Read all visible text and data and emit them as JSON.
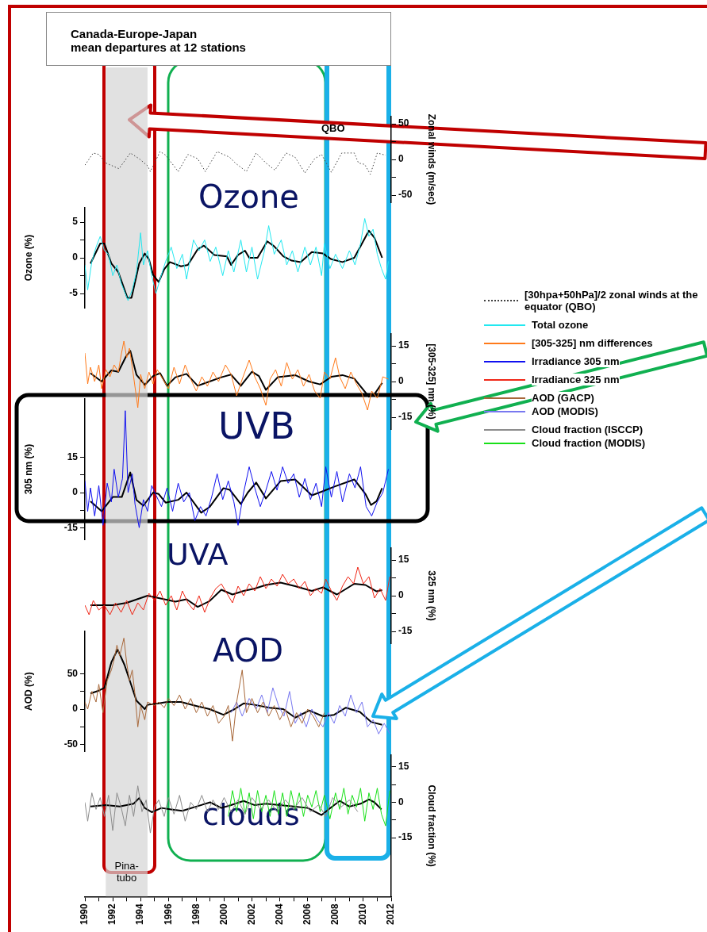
{
  "chart_data": [
    {
      "type": "line",
      "title": "Canada-Europe-Japan\nmean departures at 12 stations",
      "y2label": "Zonal winds (m/sec)",
      "xlim": [
        1990,
        2012
      ],
      "y2lim": [
        -60,
        60
      ],
      "y2ticks": [
        -50,
        {
          "value": -25,
          "label": null
        },
        0,
        {
          "value": 25,
          "label": null
        },
        50
      ],
      "tick_labels": "y",
      "legend": "right",
      "line_style": "dotted",
      "annotations": [
        "QBO",
        "Ozone"
      ],
      "series": [
        {
          "name": "[30hpa+50hPa]/2 zonal winds at the equator (QBO)",
          "color": "#404040",
          "axis": "y2",
          "x": [
            1990,
            1990.6,
            1991,
            1991.5,
            1992.45,
            1993.26,
            1993.9,
            1994.5,
            1994.7,
            1995.4,
            1995.8,
            1996.7,
            1997.4,
            1998.1,
            1998.65,
            1999.5,
            2000.4,
            2000.8,
            2001.6,
            2002.3,
            2003,
            2003.65,
            2004.45,
            2005.1,
            2005.8,
            2006.5,
            2007,
            2007.7,
            2008.45,
            2009.35,
            2009.65,
            2010.1,
            2010.5,
            2011,
            2011.6
          ],
          "values": [
            -8,
            9,
            7,
            -5,
            -13,
            9,
            1,
            -9,
            -17,
            11,
            6,
            -17,
            7,
            1,
            -17,
            11,
            3,
            -5,
            -17,
            9,
            -5,
            -15,
            9,
            3,
            -19,
            1,
            7,
            -18,
            9,
            9,
            -5,
            -7,
            -21,
            9,
            6
          ]
        }
      ]
    },
    {
      "type": "line",
      "ylabel": "Ozone (%)",
      "xlim": [
        1990,
        2012
      ],
      "ylim": [
        -7,
        7
      ],
      "yticks": [
        -5,
        {
          "value": -2.5,
          "label": null
        },
        0,
        {
          "value": 2.5,
          "label": null
        },
        5
      ],
      "tick_labels": "y",
      "legend": "right",
      "series": [
        {
          "name": "Total ozone",
          "color": "#22e8f0",
          "x": [
            1990,
            1990.2,
            1990.5,
            1990.8,
            1991.1,
            1991.4,
            1991.7,
            1992,
            1992.3,
            1992.6,
            1992.9,
            1993.1,
            1993.4,
            1993.7,
            1994,
            1994.2,
            1994.5,
            1994.8,
            1995.1,
            1995.4,
            1995.8,
            1996.2,
            1996.6,
            1997,
            1997.3,
            1997.8,
            1998.2,
            1998.6,
            1999,
            1999.4,
            1999.9,
            2000.3,
            2000.7,
            2001.2,
            2001.6,
            2002,
            2002.4,
            2002.9,
            2003.2,
            2003.6,
            2004.1,
            2004.5,
            2004.9,
            2005.3,
            2005.8,
            2006.2,
            2006.6,
            2007,
            2007.2,
            2007.6,
            2008,
            2008.5,
            2009,
            2009.4,
            2009.8,
            2010.1,
            2010.4,
            2010.7,
            2011,
            2011.3,
            2011.6,
            2011.8
          ],
          "values": [
            -1,
            -4.5,
            -0.5,
            1.5,
            3,
            1,
            0.5,
            -2.5,
            -1,
            -3.5,
            -5,
            -6,
            -4.5,
            -2,
            3.5,
            -1,
            1,
            -2.5,
            -5,
            -3,
            -0.5,
            1.5,
            -1.5,
            0.5,
            -3,
            2.5,
            1,
            2.5,
            -0.5,
            1.5,
            -2.5,
            1,
            -2,
            2.5,
            -2,
            1.5,
            -3,
            1,
            4.5,
            0.5,
            2.5,
            -1,
            1,
            -2,
            1.5,
            -1,
            1.5,
            -2.5,
            2,
            -1.5,
            0.5,
            -1.5,
            1,
            -1,
            2,
            5.5,
            3,
            4,
            0.5,
            -1.5,
            -3,
            -0.5
          ]
        },
        {
          "color": "#000000",
          "x": [
            1990.4,
            1991.1,
            1991.4,
            1991.9,
            1992.4,
            1993.05,
            1993.35,
            1993.9,
            1994.3,
            1994.6,
            1994.9,
            1995.3,
            1995.7,
            1996.1,
            1996.9,
            1997.4,
            1998.1,
            1998.55,
            1999.3,
            2000.2,
            2000.5,
            2001,
            2001.5,
            2001.8,
            2002.4,
            2003.1,
            2003.6,
            2004.25,
            2004.85,
            2005.5,
            2006.3,
            2007.1,
            2007.7,
            2008.5,
            2009.35,
            2009.85,
            2010.4,
            2010.8,
            2011.35
          ],
          "values": [
            -0.8,
            2,
            2,
            -0.8,
            -2,
            -5.6,
            -5.6,
            -0.8,
            0.6,
            -0.2,
            -2.4,
            -3.4,
            -1.6,
            -0.6,
            -1.2,
            -1,
            1.2,
            1.7,
            0.4,
            0.2,
            -1,
            0.4,
            1,
            0,
            0,
            2.3,
            1.6,
            0.2,
            -0.4,
            -0.6,
            0.8,
            0.6,
            -0.2,
            -0.6,
            0,
            1.8,
            3.8,
            2.8,
            0
          ]
        }
      ]
    },
    {
      "type": "line",
      "y2label": "[305-325] nm (%)",
      "xlim": [
        1990,
        2012
      ],
      "y2lim": [
        -20,
        20
      ],
      "y2ticks": [
        -15,
        {
          "value": -7.5,
          "label": null
        },
        0,
        {
          "value": 7.5,
          "label": null
        },
        15
      ],
      "tick_labels": "y",
      "legend": "right",
      "annotations": [
        "UVB"
      ],
      "series": [
        {
          "name": "[305-325] nm differences",
          "color": "#ff7a1a",
          "axis": "y2",
          "x": [
            1990,
            1990.2,
            1990.4,
            1990.7,
            1991,
            1991.2,
            1991.5,
            1991.8,
            1992.1,
            1992.4,
            1992.6,
            1992.8,
            1993,
            1993.2,
            1993.5,
            1993.8,
            1994,
            1994.3,
            1994.6,
            1994.9,
            1995.2,
            1995.6,
            1996,
            1996.4,
            1996.8,
            1997.2,
            1997.6,
            1998,
            1998.4,
            1998.8,
            1999.2,
            1999.6,
            2000.1,
            2000.5,
            2000.9,
            2001.3,
            2001.8,
            2002.2,
            2002.6,
            2003,
            2003.3,
            2003.7,
            2004.1,
            2004.5,
            2004.9,
            2005.3,
            2005.7,
            2006.1,
            2006.5,
            2006.9,
            2007.2,
            2007.6,
            2008,
            2008.3,
            2008.7,
            2009.1,
            2009.5,
            2009.9,
            2010.3,
            2010.6,
            2011,
            2011.4,
            2011.8
          ],
          "values": [
            12,
            -1,
            6,
            0,
            7,
            -3,
            5,
            2,
            7,
            4,
            11,
            17,
            10,
            14,
            2,
            -11,
            3,
            -3,
            4,
            -1,
            5,
            1,
            -3,
            6,
            -1,
            7,
            1,
            -4,
            2,
            -2,
            4,
            0,
            7,
            3,
            -6,
            1,
            9,
            2,
            -3,
            -10,
            1,
            5,
            -2,
            8,
            1,
            5,
            -2,
            3,
            -4,
            -7,
            4,
            1,
            10,
            2,
            -3,
            4,
            -1,
            -5,
            -12,
            -4,
            -7,
            2,
            1
          ]
        },
        {
          "color": "#000000",
          "axis": "y2",
          "x": [
            1990.4,
            1991.2,
            1991.9,
            1992.4,
            1992.95,
            1993.26,
            1993.7,
            1994.3,
            1994.9,
            1995.4,
            1995.9,
            1996.5,
            1997.3,
            1998.1,
            1998.95,
            1999.8,
            2000.5,
            2001.2,
            2002,
            2002.5,
            2003,
            2003.85,
            2005.1,
            2006.1,
            2006.9,
            2007.7,
            2008.5,
            2009.35,
            2010.4,
            2010.8,
            2011.35
          ],
          "values": [
            3.5,
            0,
            4.7,
            4.1,
            10.5,
            12.9,
            2.9,
            -1.4,
            2.3,
            3.5,
            -1.8,
            1.8,
            3.2,
            -1.8,
            0,
            1.8,
            2.9,
            -1.8,
            4.1,
            2.3,
            -3.5,
            1.8,
            2.7,
            0,
            -1.2,
            2,
            2.7,
            1.2,
            -6.4,
            -5.3,
            -0.6
          ]
        }
      ]
    },
    {
      "type": "line",
      "ylabel": "305 nm (%)",
      "xlim": [
        1990,
        2012
      ],
      "ylim": [
        -20,
        40
      ],
      "yticks": [
        -15,
        {
          "value": -7.5,
          "label": null
        },
        0,
        {
          "value": 7.5,
          "label": null
        },
        15
      ],
      "tick_labels": "y",
      "legend": "right",
      "series": [
        {
          "name": "Irradiance 305 nm",
          "color": "#1010f0",
          "x": [
            1990,
            1990.2,
            1990.4,
            1990.7,
            1991,
            1991.3,
            1991.6,
            1991.9,
            1992.1,
            1992.4,
            1992.7,
            1992.9,
            1993.1,
            1993.4,
            1993.6,
            1993.9,
            1994.2,
            1994.5,
            1994.8,
            1995.1,
            1995.5,
            1995.9,
            1996.3,
            1996.7,
            1997.1,
            1997.5,
            1997.9,
            1998.3,
            1998.7,
            1999.1,
            1999.5,
            1999.9,
            2000.3,
            2000.7,
            2001,
            2001.4,
            2001.8,
            2002.2,
            2002.6,
            2003,
            2003.4,
            2003.8,
            2004.2,
            2004.6,
            2005,
            2005.4,
            2005.8,
            2006.2,
            2006.6,
            2007,
            2007.3,
            2007.7,
            2008.1,
            2008.5,
            2009,
            2009.4,
            2009.8,
            2010.2,
            2010.6,
            2011,
            2011.4,
            2011.8
          ],
          "values": [
            5,
            -8,
            2,
            -10,
            3,
            -14,
            4,
            -4,
            10,
            -2,
            6,
            35,
            0,
            8,
            -5,
            -15,
            -3,
            -8,
            3,
            -1,
            -6,
            2,
            -8,
            4,
            -4,
            0,
            -12,
            -6,
            -10,
            -2,
            8,
            -3,
            5,
            -4,
            -14,
            0,
            11,
            2,
            -6,
            1,
            9,
            1,
            11,
            4,
            8,
            -2,
            6,
            -3,
            4,
            -6,
            11,
            -2,
            9,
            -4,
            8,
            2,
            11,
            -6,
            -10,
            -4,
            0,
            10
          ]
        },
        {
          "color": "#000000",
          "x": [
            1990.4,
            1991.2,
            1992,
            1992.65,
            1993.26,
            1993.7,
            1994.2,
            1994.9,
            1995.3,
            1995.8,
            1996.7,
            1997.3,
            1998.35,
            1998.95,
            1999.95,
            2000.4,
            2001.2,
            2001.7,
            2002.3,
            2003,
            2004.05,
            2005.1,
            2006.3,
            2007.1,
            2007.9,
            2009.35,
            2010.15,
            2010.55,
            2010.95,
            2011.35
          ],
          "values": [
            -3.7,
            -8,
            -1.9,
            -1.9,
            8.6,
            -3.1,
            -5.6,
            0,
            -0.6,
            -4.3,
            -3.1,
            0,
            -8.6,
            -6.2,
            1.9,
            1.2,
            -4.9,
            0,
            4.3,
            -2.5,
            4.9,
            5.6,
            -1.2,
            0.6,
            2.5,
            5.6,
            -0.6,
            -5.3,
            -3.7,
            1.9
          ]
        }
      ]
    },
    {
      "type": "line",
      "y2label": "325 nm (%)",
      "xlim": [
        1990,
        2012
      ],
      "y2lim": [
        -20,
        20
      ],
      "y2ticks": [
        -15,
        {
          "value": -7.5,
          "label": null
        },
        0,
        {
          "value": 7.5,
          "label": null
        },
        15
      ],
      "tick_labels": "y",
      "legend": "right",
      "annotations": [
        "UVA"
      ],
      "series": [
        {
          "name": "Irradiance 325 nm",
          "color": "#f02818",
          "axis": "y2",
          "x": [
            1990,
            1990.3,
            1990.6,
            1991,
            1991.4,
            1991.8,
            1992.2,
            1992.6,
            1993,
            1993.4,
            1993.8,
            1994.2,
            1994.6,
            1995,
            1995.4,
            1995.8,
            1996.2,
            1996.6,
            1997,
            1997.4,
            1997.8,
            1998.2,
            1998.6,
            1999,
            1999.4,
            1999.8,
            2000.2,
            2000.6,
            2001,
            2001.4,
            2001.8,
            2002.2,
            2002.6,
            2003,
            2003.4,
            2003.8,
            2004.2,
            2004.6,
            2005,
            2005.4,
            2005.8,
            2006.2,
            2006.6,
            2007,
            2007.3,
            2007.7,
            2008.1,
            2008.5,
            2008.9,
            2009.3,
            2009.6,
            2010,
            2010.4,
            2010.8,
            2011.2,
            2011.6,
            2011.9
          ],
          "values": [
            -4,
            -8,
            -2,
            -6,
            -4,
            -8,
            -3,
            -7,
            -2,
            -8,
            -3,
            -6,
            1,
            -2,
            2,
            -4,
            0,
            -6,
            2,
            -3,
            -6,
            0,
            -7,
            -1,
            3,
            5,
            1,
            -3,
            4,
            0,
            5,
            2,
            8,
            3,
            7,
            4,
            9,
            5,
            7,
            3,
            6,
            0,
            3,
            1,
            7,
            2,
            -2,
            4,
            8,
            5,
            12,
            5,
            8,
            -1,
            3,
            -2,
            8
          ]
        },
        {
          "color": "#000000",
          "axis": "y2",
          "x": [
            1990.4,
            1992,
            1993,
            1994.5,
            1995.3,
            1996.5,
            1997.3,
            1998.1,
            1998.95,
            1999.8,
            2000.6,
            2001.4,
            2002.2,
            2003,
            2004.05,
            2005.1,
            2006.3,
            2007.1,
            2008.1,
            2009.35,
            2010.15,
            2010.95,
            2011.35
          ],
          "values": [
            -4,
            -4,
            -3,
            0,
            -1,
            -2.5,
            -1.5,
            -4.7,
            -2.3,
            2.5,
            0.5,
            2,
            3,
            4.5,
            5.5,
            4,
            2,
            3.5,
            0.5,
            5,
            4.5,
            1.8,
            2.3
          ]
        }
      ]
    },
    {
      "type": "line",
      "ylabel": "AOD (%)",
      "xlim": [
        1990,
        2012
      ],
      "ylim": [
        -60,
        110
      ],
      "yticks": [
        -50,
        {
          "value": -25,
          "label": null
        },
        0,
        {
          "value": 25,
          "label": null
        },
        50
      ],
      "tick_labels": "y",
      "legend": "right",
      "annotations": [
        "AOD"
      ],
      "series": [
        {
          "name": "AOD (GACP)",
          "color": "#a8683a",
          "x": [
            1990,
            1990.2,
            1990.5,
            1990.8,
            1991,
            1991.3,
            1991.6,
            1991.9,
            1992.1,
            1992.3,
            1992.5,
            1992.8,
            1993,
            1993.2,
            1993.4,
            1993.6,
            1993.8,
            1994,
            1994.3,
            1994.5,
            1995,
            1995.3,
            1995.7,
            1996,
            1996.4,
            1996.8,
            1997.2,
            1997.6,
            1998,
            1998.4,
            1998.8,
            1999.2,
            1999.6,
            2000,
            2000.3,
            2000.6,
            2000.9,
            2001.3,
            2001.6,
            2002,
            2002.4,
            2002.8,
            2003.2,
            2003.6,
            2004,
            2004.4,
            2004.8,
            2005.2,
            2005.6,
            2006,
            2006.4,
            2006.8,
            2007.2
          ],
          "values": [
            10,
            0,
            25,
            10,
            35,
            -5,
            40,
            55,
            70,
            90,
            75,
            100,
            65,
            40,
            55,
            20,
            -25,
            5,
            -15,
            10,
            5,
            10,
            2,
            15,
            5,
            20,
            0,
            15,
            -5,
            10,
            -10,
            5,
            -20,
            -10,
            5,
            -45,
            10,
            55,
            -5,
            15,
            -5,
            10,
            -10,
            5,
            -15,
            0,
            -25,
            -5,
            -20,
            0,
            -10,
            -25,
            -5
          ]
        },
        {
          "name": "AOD (MODIS)",
          "color": "#7878f0",
          "x": [
            2000.5,
            2000.9,
            2001.3,
            2001.8,
            2002.3,
            2002.7,
            2003.1,
            2003.5,
            2003.9,
            2004.3,
            2004.7,
            2005.1,
            2005.5,
            2005.9,
            2006.3,
            2006.7,
            2007.1,
            2007.5,
            2007.9,
            2008.3,
            2008.7,
            2009.1,
            2009.5,
            2009.9,
            2010.3,
            2010.7,
            2011.1,
            2011.5,
            2011.9
          ],
          "values": [
            -5,
            10,
            -10,
            15,
            0,
            20,
            -5,
            30,
            5,
            -10,
            25,
            -20,
            -5,
            -25,
            0,
            -15,
            -25,
            -5,
            -20,
            5,
            -10,
            20,
            -5,
            10,
            -25,
            -15,
            -35,
            -20,
            -35
          ]
        },
        {
          "color": "#000000",
          "x": [
            1990.4,
            1991,
            1991.4,
            1991.9,
            1992.35,
            1992.85,
            1993.26,
            1993.7,
            1994.3,
            1994.5,
            1995.3,
            1995.9,
            1996.9,
            1998.1,
            1998.95,
            1999.95,
            2000.75,
            2001.4,
            2002.2,
            2003.25,
            2004.25,
            2005.1,
            2006.1,
            2007.1,
            2007.9,
            2008.75,
            2009.75,
            2010.55,
            2011.35
          ],
          "values": [
            22,
            26,
            30,
            66,
            84,
            62,
            38,
            12,
            0,
            6,
            8,
            10,
            10,
            4,
            0,
            -8,
            0,
            8,
            6,
            2,
            0,
            -12,
            -2,
            -10,
            -8,
            2,
            -4,
            -18,
            -22
          ]
        }
      ]
    },
    {
      "type": "line",
      "y2label": "Cloud fraction (%)",
      "xlim": [
        1990,
        2012
      ],
      "xticks": [
        1990,
        {
          "value": 1991,
          "label": null
        },
        1992,
        {
          "value": 1993,
          "label": null
        },
        1994,
        {
          "value": 1995,
          "label": null
        },
        1996,
        {
          "value": 1997,
          "label": null
        },
        1998,
        {
          "value": 1999,
          "label": null
        },
        2000,
        {
          "value": 2001,
          "label": null
        },
        2002,
        {
          "value": 2003,
          "label": null
        },
        2004,
        {
          "value": 2005,
          "label": null
        },
        2006,
        {
          "value": 2007,
          "label": null
        },
        2008,
        {
          "value": 2009,
          "label": null
        },
        2010,
        {
          "value": 2011,
          "label": null
        },
        2012
      ],
      "y2lim": [
        -40,
        20
      ],
      "y2ticks": [
        -15,
        {
          "value": -7.5,
          "label": null
        },
        0,
        {
          "value": 7.5,
          "label": null
        },
        15
      ],
      "legend": "right",
      "annotations": [
        "clouds"
      ],
      "bands": [
        {
          "axis": "x",
          "from": 1991.5,
          "to": 1994.5,
          "label": "Pina-tubo",
          "color": "#d4d4d4"
        }
      ],
      "series": [
        {
          "name": "Cloud fraction (ISCCP)",
          "color": "#8c8c8c",
          "axis": "y2",
          "x": [
            1990,
            1990.2,
            1990.5,
            1990.8,
            1991.1,
            1991.4,
            1991.7,
            1992,
            1992.3,
            1992.6,
            1992.9,
            1993.2,
            1993.5,
            1993.8,
            1994.1,
            1994.4,
            1994.7,
            1995,
            1995.3,
            1995.7,
            1996,
            1996.4,
            1996.8,
            1997.2,
            1997.6,
            1998,
            1998.4,
            1998.8,
            1999.2,
            1999.6,
            2000,
            2000.5,
            2001,
            2001.5,
            2002,
            2002.6,
            2003.2,
            2003.8,
            2004.4,
            2005,
            2005.6,
            2006.2,
            2006.8,
            2007.3,
            2007.8,
            2008.4,
            2009,
            2009.6
          ],
          "values": [
            0,
            -8,
            4,
            -3,
            2,
            -6,
            3,
            -12,
            4,
            -2,
            -10,
            3,
            -6,
            7,
            -4,
            1,
            -13,
            -2,
            1,
            -6,
            2,
            -5,
            3,
            -8,
            0,
            -3,
            3,
            -4,
            1,
            -3,
            2,
            -4,
            1,
            -5,
            2,
            -3,
            1,
            -4,
            1,
            -3,
            2,
            -4,
            -1,
            -6,
            2,
            -2,
            1,
            -4
          ]
        },
        {
          "name": "Cloud fraction (MODIS)",
          "color": "#18e018",
          "axis": "y2",
          "x": [
            2000.3,
            2000.6,
            2000.9,
            2001.2,
            2001.5,
            2001.8,
            2002.1,
            2002.4,
            2002.7,
            2003,
            2003.3,
            2003.6,
            2003.9,
            2004.2,
            2004.5,
            2004.8,
            2005.1,
            2005.4,
            2005.7,
            2006,
            2006.3,
            2006.6,
            2006.9,
            2007.2,
            2007.6,
            2008,
            2008.3,
            2008.6,
            2008.9,
            2009.2,
            2009.5,
            2009.8,
            2010.1,
            2010.4,
            2010.7,
            2011,
            2011.3,
            2011.6,
            2011.9
          ],
          "values": [
            -6,
            5,
            -4,
            6,
            -5,
            4,
            -7,
            5,
            -4,
            3,
            -6,
            5,
            -5,
            4,
            -6,
            5,
            -3,
            4,
            -6,
            3,
            -2,
            5,
            -4,
            3,
            -7,
            4,
            -3,
            6,
            -5,
            3,
            -2,
            6,
            -8,
            4,
            -3,
            6,
            -5,
            -10,
            5
          ]
        },
        {
          "color": "#000000",
          "axis": "y2",
          "x": [
            1990.4,
            1991.5,
            1992.5,
            1993.5,
            1993.9,
            1994.3,
            1994.8,
            1995.5,
            1996.2,
            1997,
            1998,
            1999,
            1999.8,
            2000.5,
            2001.4,
            2002.2,
            2003,
            2004,
            2005,
            2006,
            2007,
            2007.5,
            2008.3,
            2009,
            2009.8,
            2010.4,
            2010.8,
            2011.3
          ],
          "values": [
            -1.8,
            -1.2,
            -1.8,
            -0.6,
            1.8,
            -2.4,
            -4.2,
            -2.4,
            -3,
            -3.6,
            -1.8,
            0,
            -2.4,
            -1.2,
            0.6,
            -1.2,
            -0.6,
            -1.2,
            -1.8,
            -2.4,
            -5.4,
            -3,
            0.6,
            -1.8,
            -0.6,
            1.2,
            0,
            -3
          ]
        }
      ]
    }
  ]
}
